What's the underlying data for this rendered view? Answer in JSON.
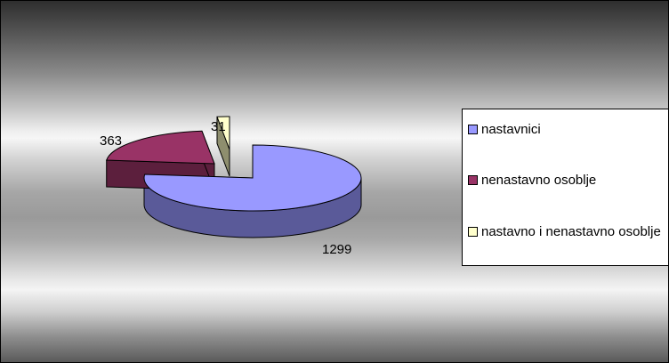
{
  "chart_data": {
    "type": "pie",
    "variant": "3d-exploded",
    "categories": [
      "nastavnici",
      "nenastavno osoblje",
      "nastavno i nenastavno osoblje"
    ],
    "values": [
      1299,
      363,
      31
    ],
    "data_labels": [
      "1299",
      "363",
      "31"
    ],
    "colors": {
      "nastavnici": {
        "top": "#9999ff",
        "side": "#5a5a99"
      },
      "nenastavno osoblje": {
        "top": "#993366",
        "side": "#5c1f3d"
      },
      "nastavno i nenastavno osoblje": {
        "top": "#ffffcc",
        "side": "#8e8e6e"
      }
    },
    "legend": {
      "placement": "right",
      "entries": [
        "nastavnici",
        "nenastavno osoblje",
        "nastavno i nenastavno osoblje"
      ]
    },
    "title": ""
  }
}
